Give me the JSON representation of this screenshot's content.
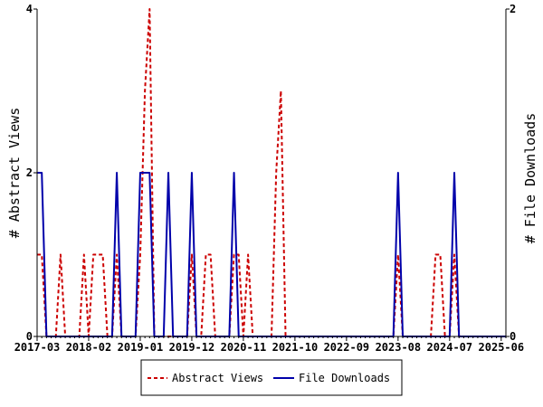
{
  "chart_data": {
    "type": "line",
    "x_tick_labels": [
      "2017-03",
      "2018-02",
      "2019-01",
      "2019-12",
      "2020-11",
      "2021-10",
      "2022-09",
      "2023-08",
      "2024-07",
      "2025-06"
    ],
    "x_tick_months": [
      0,
      11,
      22,
      33,
      44,
      55,
      66,
      77,
      88,
      99
    ],
    "x_range_months": [
      0,
      100
    ],
    "ylabel_left": "# Abstract Views",
    "ylabel_right": "# File Downloads",
    "ylim_left": [
      0,
      4
    ],
    "ylim_right": [
      0,
      2
    ],
    "yticks_left": [
      "0",
      "2",
      "4"
    ],
    "yticks_right": [
      "0",
      "2"
    ],
    "legend_position": "bottom-center",
    "series": [
      {
        "name": "Abstract Views",
        "axis": "left",
        "color": "#cc0000",
        "style": "dashed",
        "x": [
          0,
          1,
          2,
          3,
          4,
          5,
          6,
          7,
          8,
          9,
          10,
          11,
          12,
          13,
          14,
          15,
          16,
          17,
          18,
          19,
          20,
          21,
          22,
          23,
          24,
          25,
          26,
          27,
          28,
          29,
          30,
          31,
          32,
          33,
          34,
          35,
          36,
          37,
          38,
          39,
          40,
          41,
          42,
          43,
          44,
          45,
          46,
          47,
          48,
          49,
          50,
          51,
          52,
          53,
          54,
          55,
          56,
          57,
          58,
          59,
          60,
          61,
          62,
          63,
          64,
          65,
          66,
          67,
          68,
          69,
          70,
          71,
          72,
          73,
          74,
          75,
          76,
          77,
          78,
          79,
          80,
          81,
          82,
          83,
          84,
          85,
          86,
          87,
          88,
          89,
          90,
          91,
          92,
          93,
          94,
          95,
          96,
          97,
          98,
          99,
          100
        ],
        "y": [
          1,
          1,
          0,
          0,
          0,
          1,
          0,
          0,
          0,
          0,
          1,
          0,
          1,
          1,
          1,
          0,
          0,
          1,
          0,
          0,
          0,
          0,
          1,
          3,
          4,
          0,
          0,
          0,
          0,
          0,
          0,
          0,
          0,
          1,
          0,
          0,
          1,
          1,
          0,
          0,
          0,
          0,
          1,
          1,
          0,
          1,
          0,
          0,
          0,
          0,
          0,
          2,
          3,
          0,
          0,
          0,
          0,
          0,
          0,
          0,
          0,
          0,
          0,
          0,
          0,
          0,
          0,
          0,
          0,
          0,
          0,
          0,
          0,
          0,
          0,
          0,
          0,
          1,
          0,
          0,
          0,
          0,
          0,
          0,
          0,
          1,
          1,
          0,
          0,
          1,
          0,
          0,
          0,
          0,
          0,
          0,
          0,
          0,
          0,
          0,
          0
        ]
      },
      {
        "name": "File Downloads",
        "axis": "right",
        "color": "#0000aa",
        "style": "solid",
        "x": [
          0,
          1,
          2,
          3,
          4,
          5,
          6,
          7,
          8,
          9,
          10,
          11,
          12,
          13,
          14,
          15,
          16,
          17,
          18,
          19,
          20,
          21,
          22,
          23,
          24,
          25,
          26,
          27,
          28,
          29,
          30,
          31,
          32,
          33,
          34,
          35,
          36,
          37,
          38,
          39,
          40,
          41,
          42,
          43,
          44,
          45,
          46,
          47,
          48,
          49,
          50,
          51,
          52,
          53,
          54,
          55,
          56,
          57,
          58,
          59,
          60,
          61,
          62,
          63,
          64,
          65,
          66,
          67,
          68,
          69,
          70,
          71,
          72,
          73,
          74,
          75,
          76,
          77,
          78,
          79,
          80,
          81,
          82,
          83,
          84,
          85,
          86,
          87,
          88,
          89,
          90,
          91,
          92,
          93,
          94,
          95,
          96,
          97,
          98,
          99,
          100
        ],
        "y": [
          1,
          1,
          0,
          0,
          0,
          0,
          0,
          0,
          0,
          0,
          0,
          0,
          0,
          0,
          0,
          0,
          0,
          1,
          0,
          0,
          0,
          0,
          1,
          1,
          1,
          0,
          0,
          0,
          1,
          0,
          0,
          0,
          0,
          1,
          0,
          0,
          0,
          0,
          0,
          0,
          0,
          0,
          1,
          0,
          0,
          0,
          0,
          0,
          0,
          0,
          0,
          0,
          0,
          0,
          0,
          0,
          0,
          0,
          0,
          0,
          0,
          0,
          0,
          0,
          0,
          0,
          0,
          0,
          0,
          0,
          0,
          0,
          0,
          0,
          0,
          0,
          0,
          1,
          0,
          0,
          0,
          0,
          0,
          0,
          0,
          0,
          0,
          0,
          0,
          1,
          0,
          0,
          0,
          0,
          0,
          0,
          0,
          0,
          0,
          0,
          0
        ]
      }
    ]
  }
}
